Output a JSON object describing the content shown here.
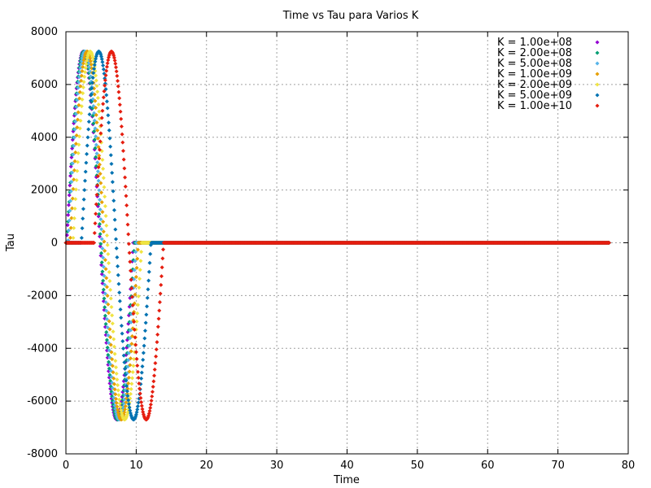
{
  "chart_data": {
    "type": "scatter",
    "title": "Time vs Tau para Varios K",
    "xlabel": "Time",
    "ylabel": "Tau",
    "xlim": [
      0,
      80
    ],
    "ylim": [
      -8000,
      8000
    ],
    "x_ticks": [
      0,
      10,
      20,
      30,
      40,
      50,
      60,
      70,
      80
    ],
    "y_ticks": [
      -8000,
      -6000,
      -4000,
      -2000,
      0,
      2000,
      4000,
      6000,
      8000
    ],
    "grid": true,
    "legend_position": "top-right",
    "marker": "diamond",
    "series": [
      {
        "name": "K = 1.00e+08",
        "color": "#9400d3",
        "t_start": 0.1,
        "peak": 7250,
        "trough": -6700,
        "period": 9.5,
        "x_end": 77.3
      },
      {
        "name": "K = 2.00e+08",
        "color": "#009e73",
        "t_start": 0.15,
        "peak": 7250,
        "trough": -6700,
        "period": 9.6,
        "x_end": 77.3
      },
      {
        "name": "K = 5.00e+08",
        "color": "#56b4e9",
        "t_start": 0.3,
        "peak": 7250,
        "trough": -6700,
        "period": 9.7,
        "x_end": 77.3
      },
      {
        "name": "K = 1.00e+09",
        "color": "#e69f00",
        "t_start": 0.6,
        "peak": 7250,
        "trough": -6700,
        "period": 9.7,
        "x_end": 77.3
      },
      {
        "name": "K = 2.00e+09",
        "color": "#f0e442",
        "t_start": 1.0,
        "peak": 7250,
        "trough": -6700,
        "period": 9.8,
        "x_end": 77.3
      },
      {
        "name": "K = 5.00e+09",
        "color": "#0072b2",
        "t_start": 2.2,
        "peak": 7250,
        "trough": -6700,
        "period": 9.9,
        "x_end": 77.3
      },
      {
        "name": "K = 1.00e+10",
        "color": "#e51e10",
        "t_start": 4.0,
        "peak": 7250,
        "trough": -6700,
        "period": 9.9,
        "x_end": 77.3
      }
    ]
  }
}
